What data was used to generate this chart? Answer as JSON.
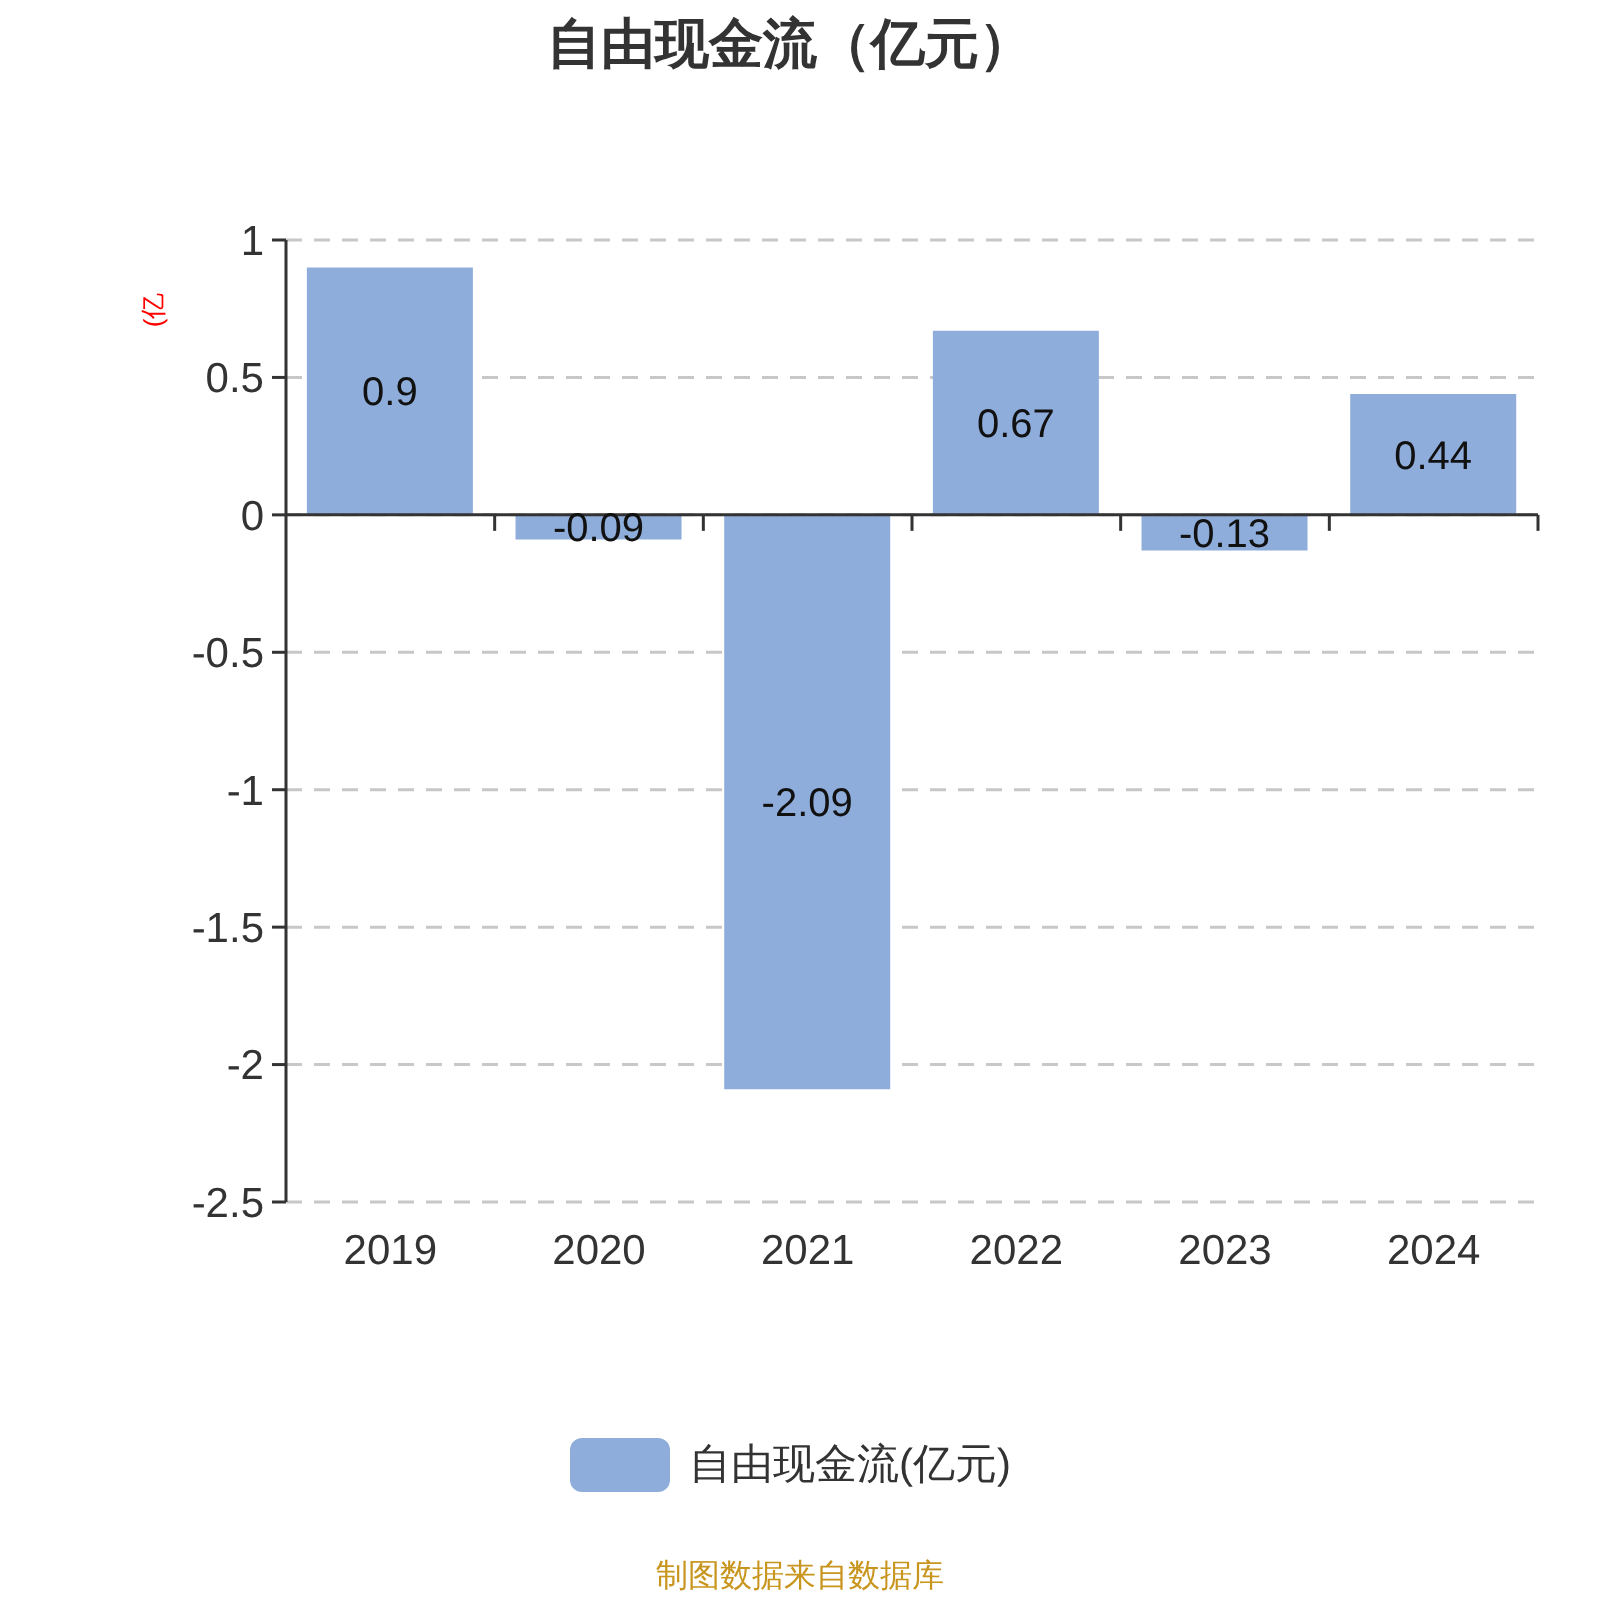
{
  "chart_data": {
    "type": "bar",
    "title": "自由现金流（亿元）",
    "ylabel": "(亿",
    "categories": [
      "2019",
      "2020",
      "2021",
      "2022",
      "2023",
      "2024"
    ],
    "series": [
      {
        "name": "自由现金流(亿元)",
        "color": "#8eaddb",
        "values": [
          0.9,
          -0.09,
          -2.09,
          0.67,
          -0.13,
          0.44
        ]
      }
    ],
    "ylim": [
      -2.5,
      1
    ],
    "yticks": [
      -2.5,
      -2,
      -1.5,
      -1,
      -0.5,
      0,
      0.5,
      1
    ],
    "grid": "y",
    "legend": "bottom",
    "data_labels": true,
    "annotations": [
      "制图数据来自数据库"
    ]
  }
}
